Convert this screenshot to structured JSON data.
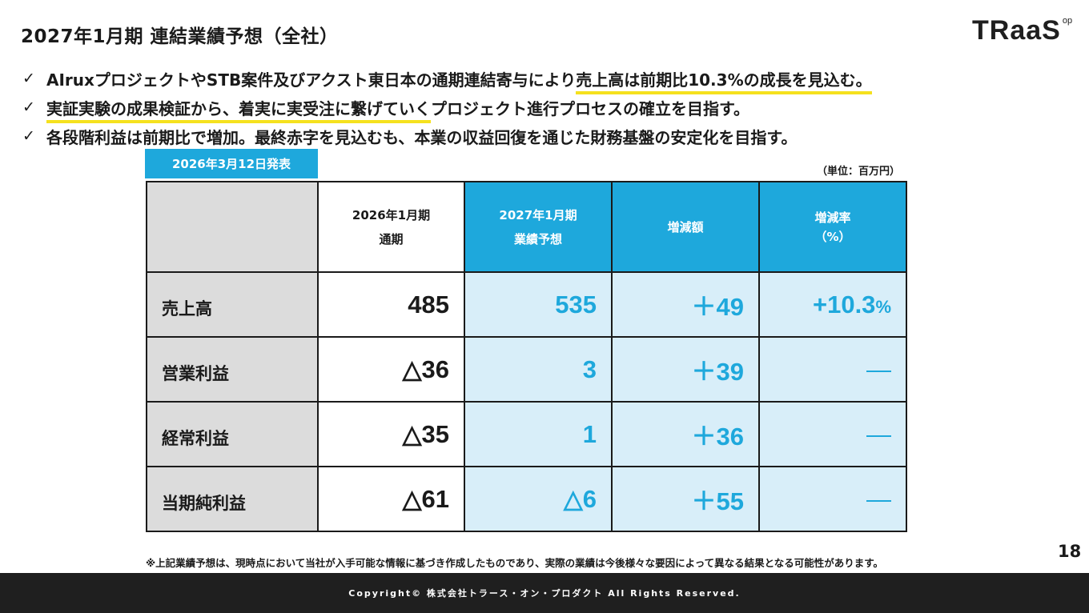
{
  "title": "2027年1月期 連結業績予想（全社）",
  "logo": {
    "text": "TRaaS",
    "sup": "op"
  },
  "bullets": [
    {
      "check": "✓",
      "before": "AIruxプロジェクトやSTB案件及びアクスト東日本の通期連結寄与により",
      "highlight": "売上高は前期比10.3%の成長を見込む。",
      "after": ""
    },
    {
      "check": "✓",
      "before": "",
      "highlight": "実証実験の成果検証から、着実に実受注に繋げていく",
      "after": "プロジェクト進行プロセスの確立を目指す。"
    },
    {
      "check": "✓",
      "before": "各段階利益は前期比で増加。最終赤字を見込むも、本業の収益回復を通じた財務基盤の安定化を目指す。",
      "highlight": "",
      "after": ""
    }
  ],
  "date_badge": "2026年3月12日発表",
  "unit": "（単位：百万円）",
  "table": {
    "headers": [
      {
        "line1": "",
        "line2": ""
      },
      {
        "line1": "2026年1月期",
        "line2": "通期"
      },
      {
        "line1": "2027年1月期",
        "line2": "業績予想"
      },
      {
        "line1": "増減額",
        "line2": ""
      },
      {
        "line1": "増減率",
        "line2": "（%）"
      }
    ],
    "rows": [
      {
        "label": "売上高",
        "prev": "485",
        "forecast": "535",
        "diff": "＋49",
        "rate": "+10.3",
        "rate_unit": "%"
      },
      {
        "label": "営業利益",
        "prev": "△36",
        "forecast": "3",
        "diff": "＋39",
        "rate": "—",
        "rate_unit": ""
      },
      {
        "label": "経常利益",
        "prev": "△35",
        "forecast": "1",
        "diff": "＋36",
        "rate": "—",
        "rate_unit": ""
      },
      {
        "label": "当期純利益",
        "prev": "△61",
        "forecast": "△6",
        "diff": "＋55",
        "rate": "—",
        "rate_unit": ""
      }
    ]
  },
  "footnote": "※上記業績予想は、現時点において当社が入手可能な情報に基づき作成したものであり、実際の業績は今後様々な要因によって異なる結果となる可能性があります。",
  "page_number": "18",
  "footer": "Copyright© 株式会社トラース・オン・プロダクト All Rights Reserved.",
  "colors": {
    "accent": "#1ea8dc",
    "highlight": "#f5e11e",
    "cell_blue": "#d8eef9",
    "label_gray": "#dcdcdc",
    "footer_bg": "#1f1f1f"
  }
}
